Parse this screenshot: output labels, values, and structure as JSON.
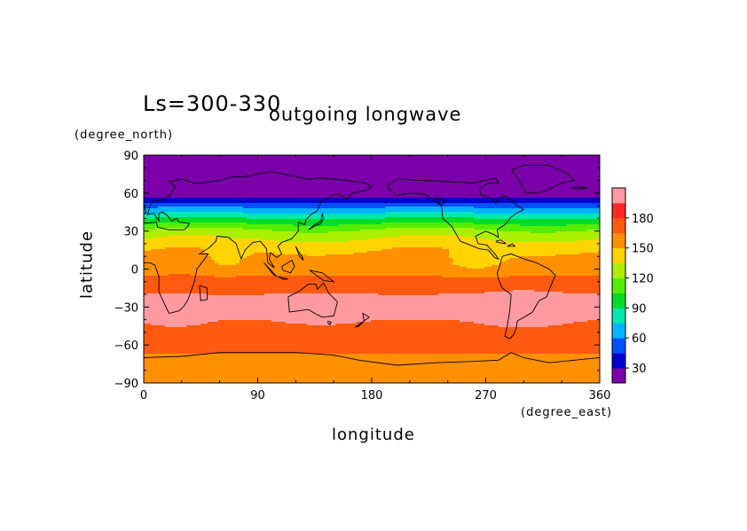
{
  "chart_data": {
    "type": "heatmap",
    "title": "outgoing longwave",
    "subtitle": "Ls=300-330",
    "xlabel": "longitude",
    "xunits": "(degree_east)",
    "ylabel": "latitude",
    "yunits": "(degree_north)",
    "xlim": [
      0,
      360
    ],
    "ylim": [
      -90,
      90
    ],
    "x_ticks": [
      "0",
      "90",
      "180",
      "270",
      "360"
    ],
    "y_ticks": [
      "90",
      "60",
      "30",
      "0",
      "−30",
      "−60",
      "−90"
    ],
    "colorbar": {
      "levels": [
        15,
        30,
        45,
        60,
        75,
        90,
        105,
        120,
        135,
        150,
        165,
        180,
        190
      ],
      "tick_labels": [
        "30",
        "60",
        "90",
        "120",
        "150",
        "180"
      ],
      "colors": [
        "#7b00aa",
        "#0000cc",
        "#0050ff",
        "#00b4ff",
        "#00e8b0",
        "#00dc28",
        "#55ee00",
        "#aaf000",
        "#ffd400",
        "#ff9000",
        "#ff5a10",
        "#ff2828",
        "#ff9aa0"
      ]
    },
    "zonal_profile": {
      "lat": [
        85,
        75,
        65,
        60,
        55,
        52,
        48,
        44,
        40,
        36,
        32,
        28,
        24,
        20,
        16,
        12,
        8,
        4,
        0,
        -4,
        -10,
        -20,
        -30,
        -40,
        -50,
        -60,
        -65,
        -70,
        -80,
        -90
      ],
      "value": [
        15,
        15,
        15,
        20,
        35,
        48,
        62,
        76,
        90,
        104,
        118,
        128,
        135,
        142,
        148,
        152,
        156,
        158,
        160,
        164,
        172,
        180,
        188,
        180,
        178,
        172,
        168,
        158,
        153,
        150
      ]
    }
  }
}
